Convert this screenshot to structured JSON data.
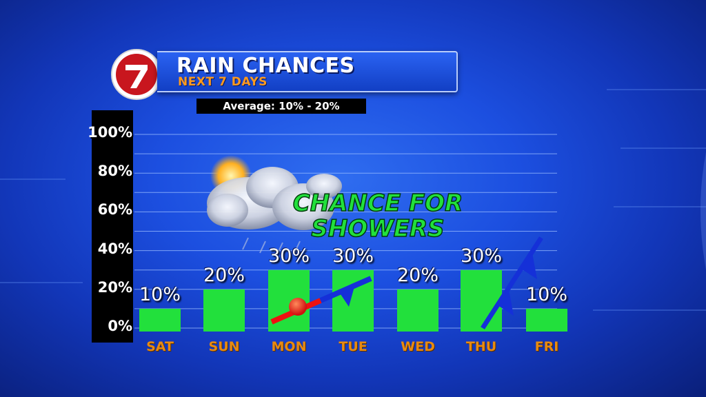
{
  "header": {
    "title": "RAIN CHANCES",
    "subtitle": "NEXT 7 DAYS",
    "logo_text": "7"
  },
  "average": "Average: 10% - 20%",
  "annotation": "CHANCE FOR SHOWERS",
  "colors": {
    "bar": "#22e03c",
    "axis_bg": "#000000",
    "day_label": "#e88a10",
    "annotation": "#22e03c",
    "logo_red": "#c8161e"
  },
  "chart_data": {
    "type": "bar",
    "categories": [
      "SAT",
      "SUN",
      "MON",
      "TUE",
      "WED",
      "THU",
      "FRI"
    ],
    "values": [
      10,
      20,
      30,
      30,
      20,
      30,
      10
    ],
    "data_labels": [
      "10%",
      "20%",
      "30%",
      "30%",
      "20%",
      "30%",
      "10%"
    ],
    "ylim": [
      0,
      100
    ],
    "yticks": [
      "0%",
      "20%",
      "40%",
      "60%",
      "80%",
      "100%"
    ],
    "grid": true
  }
}
